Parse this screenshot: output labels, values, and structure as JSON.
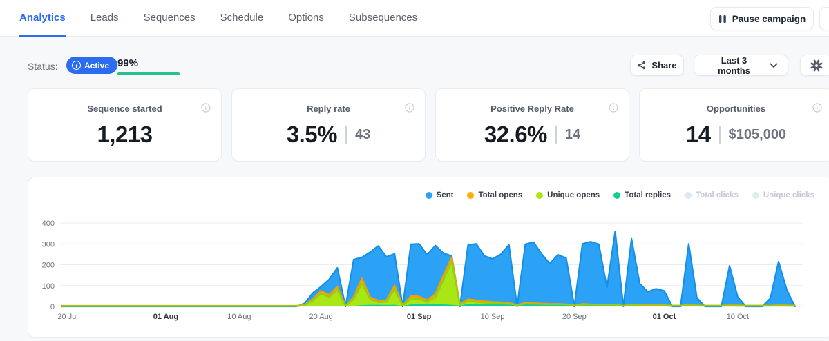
{
  "colors": {
    "accent": "#2c6cf0",
    "green": "#25c08c"
  },
  "tabs": {
    "items": [
      {
        "label": "Analytics",
        "active": true
      },
      {
        "label": "Leads",
        "active": false
      },
      {
        "label": "Sequences",
        "active": false
      },
      {
        "label": "Schedule",
        "active": false
      },
      {
        "label": "Options",
        "active": false
      },
      {
        "label": "Subsequences",
        "active": false
      }
    ]
  },
  "header": {
    "pause_button": {
      "label": "Pause campaign",
      "icon": "pause-icon"
    },
    "more_button": {
      "label": "",
      "icon": "hidden-partial"
    }
  },
  "status_bar": {
    "label": "Status:",
    "badge": {
      "label": "Active",
      "icon": "info-icon"
    },
    "progress": {
      "percent_label": "99%"
    },
    "share_button": {
      "label": "Share",
      "icon": "share-icon"
    },
    "range_select": {
      "value": "Last 3 months",
      "icon": "chevron-down-icon"
    },
    "settings_button": {
      "icon": "gear-icon"
    }
  },
  "stat_cards": [
    {
      "title": "Sequence started",
      "value": "1,213",
      "secondary": null,
      "icon": "info-icon"
    },
    {
      "title": "Reply rate",
      "value": "3.5%",
      "secondary": "43",
      "icon": "info-icon"
    },
    {
      "title": "Positive Reply Rate",
      "value": "32.6%",
      "secondary": "14",
      "icon": "info-icon"
    },
    {
      "title": "Opportunities",
      "value": "14",
      "secondary": "$105,000",
      "icon": "info-icon"
    }
  ],
  "chart_data": {
    "type": "area",
    "stacked": false,
    "grid": true,
    "legend_position": "top-right",
    "ylim": [
      0,
      400
    ],
    "y_ticks": [
      0,
      100,
      200,
      300,
      400
    ],
    "x_days": 90,
    "x_ticks": [
      {
        "day": 0,
        "label": "20 Jul",
        "bold": false
      },
      {
        "day": 12,
        "label": "01 Aug",
        "bold": true
      },
      {
        "day": 21,
        "label": "10 Aug",
        "bold": false
      },
      {
        "day": 31,
        "label": "20 Aug",
        "bold": false
      },
      {
        "day": 43,
        "label": "01 Sep",
        "bold": true
      },
      {
        "day": 52,
        "label": "10 Sep",
        "bold": false
      },
      {
        "day": 62,
        "label": "20 Sep",
        "bold": false
      },
      {
        "day": 73,
        "label": "01 Oct",
        "bold": true
      },
      {
        "day": 82,
        "label": "10 Oct",
        "bold": false
      }
    ],
    "series": [
      {
        "name": "Sent",
        "visible": true,
        "color": "#2ba2f6",
        "stroke": "#1590e8",
        "stroke_width": 2.2,
        "values": [
          0,
          0,
          0,
          0,
          0,
          0,
          0,
          0,
          0,
          0,
          0,
          0,
          0,
          0,
          0,
          0,
          0,
          0,
          0,
          0,
          0,
          0,
          0,
          0,
          0,
          0,
          0,
          0,
          0,
          15,
          65,
          95,
          130,
          185,
          0,
          225,
          235,
          260,
          290,
          238,
          252,
          0,
          298,
          300,
          248,
          292,
          255,
          242,
          0,
          295,
          300,
          242,
          228,
          250,
          295,
          0,
          298,
          308,
          252,
          205,
          248,
          232,
          0,
          300,
          310,
          298,
          90,
          360,
          0,
          325,
          110,
          70,
          85,
          75,
          0,
          0,
          300,
          42,
          0,
          0,
          0,
          195,
          45,
          0,
          0,
          0,
          40,
          215,
          80,
          0
        ]
      },
      {
        "name": "Total opens",
        "visible": true,
        "color": "#ffb000",
        "stroke": "#f29d00",
        "stroke_width": 2.4,
        "values": [
          3,
          3,
          3,
          3,
          3,
          3,
          3,
          3,
          3,
          3,
          3,
          3,
          3,
          3,
          3,
          3,
          3,
          3,
          3,
          3,
          3,
          3,
          3,
          3,
          3,
          3,
          3,
          3,
          3,
          8,
          35,
          75,
          55,
          95,
          4,
          45,
          135,
          45,
          28,
          30,
          100,
          5,
          50,
          48,
          30,
          60,
          150,
          235,
          12,
          35,
          30,
          25,
          22,
          20,
          18,
          6,
          18,
          16,
          14,
          12,
          12,
          10,
          5,
          12,
          10,
          8,
          8,
          8,
          4,
          8,
          6,
          6,
          6,
          6,
          4,
          4,
          7,
          5,
          4,
          4,
          4,
          6,
          5,
          4,
          4,
          4,
          4,
          6,
          5,
          4
        ]
      },
      {
        "name": "Unique opens",
        "visible": true,
        "color": "#a8e616",
        "stroke": "#93cf10",
        "stroke_width": 2.4,
        "values": [
          2,
          2,
          2,
          2,
          2,
          2,
          2,
          2,
          2,
          2,
          2,
          2,
          2,
          2,
          2,
          2,
          2,
          2,
          2,
          2,
          2,
          2,
          2,
          2,
          2,
          2,
          2,
          2,
          2,
          6,
          28,
          62,
          45,
          80,
          3,
          35,
          110,
          35,
          20,
          22,
          82,
          4,
          38,
          36,
          22,
          45,
          128,
          215,
          9,
          25,
          22,
          18,
          16,
          14,
          13,
          4,
          13,
          11,
          10,
          9,
          9,
          8,
          4,
          9,
          7,
          6,
          6,
          6,
          3,
          6,
          4,
          4,
          4,
          4,
          3,
          3,
          5,
          4,
          3,
          3,
          3,
          4,
          3,
          3,
          3,
          3,
          3,
          4,
          3,
          3
        ]
      },
      {
        "name": "Total replies",
        "visible": true,
        "color": "#15ce92",
        "stroke": null,
        "stroke_width": 0,
        "values": [
          0,
          0,
          0,
          0,
          0,
          0,
          0,
          0,
          0,
          0,
          0,
          0,
          0,
          0,
          0,
          0,
          0,
          0,
          0,
          0,
          0,
          0,
          0,
          0,
          0,
          0,
          0,
          0,
          0,
          0,
          0,
          0,
          0,
          0,
          0,
          3,
          6,
          8,
          8,
          7,
          8,
          2,
          10,
          12,
          14,
          12,
          10,
          8,
          4,
          12,
          14,
          12,
          10,
          10,
          9,
          3,
          10,
          9,
          8,
          7,
          7,
          6,
          2,
          5,
          5,
          4,
          4,
          4,
          2,
          4,
          3,
          3,
          3,
          3,
          2,
          2,
          3,
          2,
          2,
          2,
          2,
          3,
          2,
          2,
          2,
          2,
          2,
          3,
          2,
          2
        ]
      },
      {
        "name": "Total clicks",
        "visible": false,
        "color": "#dbe9f6",
        "stroke": null,
        "stroke_width": 0,
        "values": []
      },
      {
        "name": "Unique clicks",
        "visible": false,
        "color": "#ddefe7",
        "stroke": null,
        "stroke_width": 0,
        "values": []
      }
    ]
  }
}
